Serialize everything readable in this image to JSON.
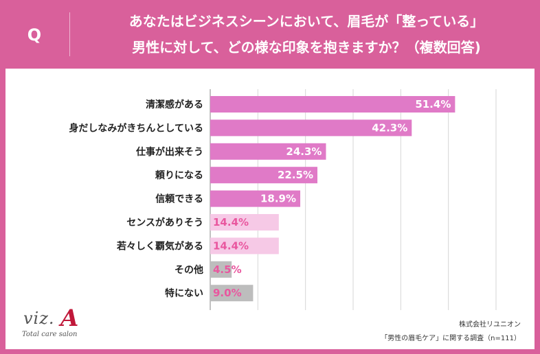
{
  "header": {
    "q_mark": "Q",
    "question_line1": "あなたはビジネスシーンにおいて、眉毛が「整っている」",
    "question_line2": "男性に対して、どの様な印象を抱きますか？（複数回答)"
  },
  "chart_data": {
    "type": "bar",
    "orientation": "horizontal",
    "categories": [
      "清潔感がある",
      "身だしなみがきちんとしている",
      "仕事が出来そう",
      "頼りになる",
      "信頼できる",
      "センスがありそう",
      "若々しく覇気がある",
      "その他",
      "特にない"
    ],
    "values": [
      51.4,
      42.3,
      24.3,
      22.5,
      18.9,
      14.4,
      14.4,
      4.5,
      9.0
    ],
    "value_labels": [
      "51.4%",
      "42.3%",
      "24.3%",
      "22.5%",
      "18.9%",
      "14.4%",
      "14.4%",
      "4.5%",
      "9.0%"
    ],
    "xlim": [
      0,
      60
    ],
    "grid": true,
    "colors": {
      "strong": "#e07ac7",
      "light": "#f6c9e6",
      "other": "#bdbdbd",
      "label_on_strong": "#ffffff",
      "label_on_light": "#e9579f"
    },
    "bar_color_group": [
      "strong",
      "strong",
      "strong",
      "strong",
      "strong",
      "light",
      "light",
      "other",
      "other"
    ]
  },
  "logo": {
    "text": "viz.",
    "mark": "A",
    "subtitle": "Total care salon"
  },
  "source": {
    "company": "株式会社リユニオン",
    "survey": "「男性の眉毛ケア」に関する調査（n=111）"
  },
  "colors": {
    "header_bg": "#d9609b",
    "panel_bg": "#ffffff"
  }
}
